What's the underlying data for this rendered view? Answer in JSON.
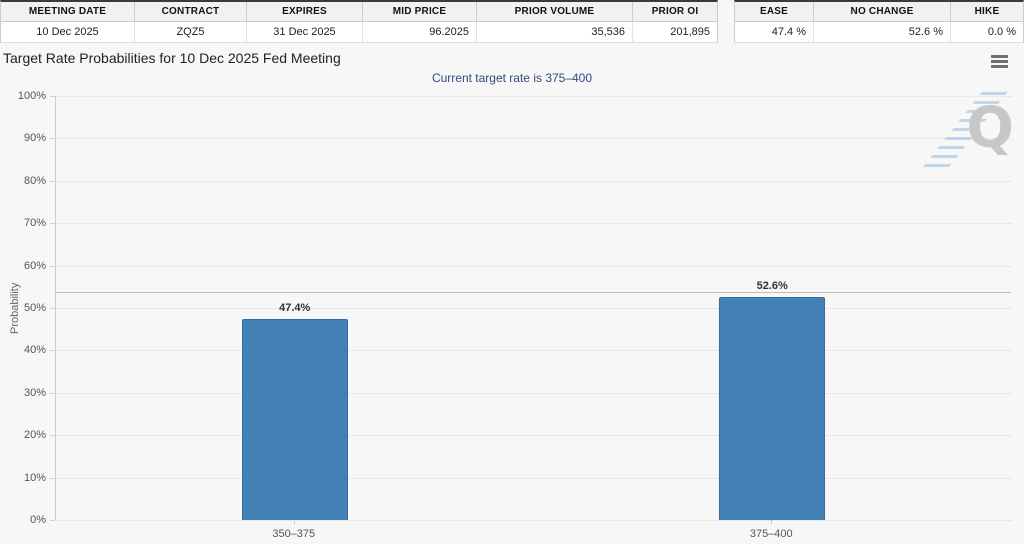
{
  "tables": {
    "contract": {
      "headers": [
        "MEETING DATE",
        "CONTRACT",
        "EXPIRES",
        "MID PRICE",
        "PRIOR VOLUME",
        "PRIOR OI"
      ],
      "values": [
        "10 Dec 2025",
        "ZQZ5",
        "31 Dec 2025",
        "96.2025",
        "35,536",
        "201,895"
      ]
    },
    "probabilities": {
      "headers": [
        "EASE",
        "NO CHANGE",
        "HIKE"
      ],
      "values": [
        "47.4 %",
        "52.6 %",
        "0.0 %"
      ]
    }
  },
  "chart": {
    "title": "Target Rate Probabilities for 10 Dec 2025 Fed Meeting",
    "subtitle": "Current target rate is 375–400",
    "watermark_letter": "Q",
    "menu_icon": "hamburger-icon",
    "colors": {
      "bar": "#4380b5",
      "subtitle_text": "#33497e",
      "reference_line": "#bdbdbd",
      "table_header_bg": "#f1f1f1",
      "page_bg": "#f7f7f7"
    }
  },
  "chart_data": {
    "type": "bar",
    "title": "Target Rate Probabilities for 10 Dec 2025 Fed Meeting",
    "subtitle": "Current target rate is 375–400",
    "categories": [
      "350–375",
      "375–400"
    ],
    "values": [
      47.4,
      52.6
    ],
    "data_labels": [
      "47.4%",
      "52.6%"
    ],
    "xlabel": "",
    "ylabel": "Probability",
    "ylim": [
      0,
      100
    ],
    "ytick_step": 10,
    "ytick_suffix": "%",
    "grid": "horizontal-dotted",
    "reference_line": 53.8,
    "legend": "none",
    "bar_color": "#4380b5"
  }
}
